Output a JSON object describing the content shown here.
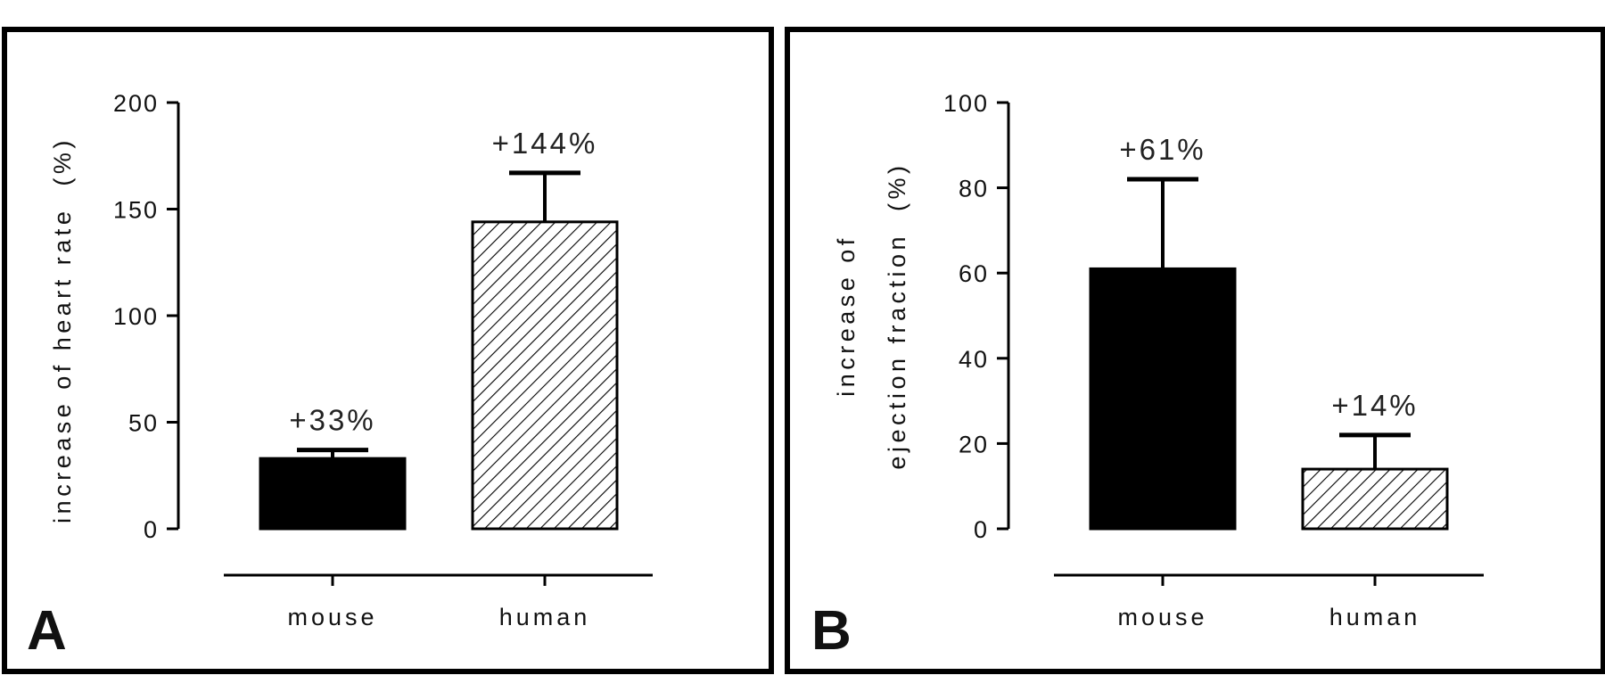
{
  "chart_data": [
    {
      "type": "bar",
      "panel_label": "A",
      "categories": [
        "mouse",
        "human"
      ],
      "values": [
        33,
        144
      ],
      "error_upper": [
        37,
        167
      ],
      "annotations": [
        "+33%",
        "+144%"
      ],
      "bar_styles": [
        "solid",
        "hatched"
      ],
      "ylabel_lines": [
        "increase of heart rate  (%)"
      ],
      "ylim": [
        0,
        200
      ],
      "yticks": [
        0,
        50,
        100,
        150,
        200
      ],
      "grid": false,
      "legend": false
    },
    {
      "type": "bar",
      "panel_label": "B",
      "categories": [
        "mouse",
        "human"
      ],
      "values": [
        61,
        14
      ],
      "error_upper": [
        82,
        22
      ],
      "annotations": [
        "+61%",
        "+14%"
      ],
      "bar_styles": [
        "solid",
        "hatched"
      ],
      "ylabel_lines": [
        "increase of",
        "ejection fraction  (%)"
      ],
      "ylim": [
        0,
        100
      ],
      "yticks": [
        0,
        20,
        40,
        60,
        80,
        100
      ],
      "grid": false,
      "legend": false
    }
  ],
  "colors": {
    "bar_fill": "#000000",
    "hatch_line": "#000000",
    "frame": "#000000"
  }
}
